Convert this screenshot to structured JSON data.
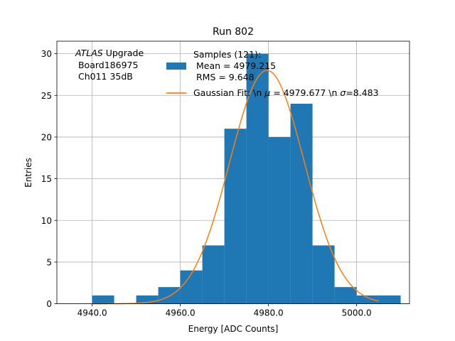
{
  "chart_data": {
    "type": "bar",
    "title": "Run 802",
    "xlabel": "Energy [ADC Counts]",
    "ylabel": "Entries",
    "xlim": [
      4932,
      5012
    ],
    "ylim": [
      0,
      31.5
    ],
    "xticks": [
      {
        "value": 4940,
        "label": "4940.0"
      },
      {
        "value": 4960,
        "label": "4960.0"
      },
      {
        "value": 4980,
        "label": "4980.0"
      },
      {
        "value": 5000,
        "label": "5000.0"
      }
    ],
    "yticks": [
      {
        "value": 0,
        "label": "0"
      },
      {
        "value": 5,
        "label": "5"
      },
      {
        "value": 10,
        "label": "10"
      },
      {
        "value": 15,
        "label": "15"
      },
      {
        "value": 20,
        "label": "20"
      },
      {
        "value": 25,
        "label": "25"
      },
      {
        "value": 30,
        "label": "30"
      }
    ],
    "grid": true,
    "histogram": {
      "name": "Samples (121):",
      "color": "#1f77b4",
      "bin_edges": [
        4940,
        4945,
        4950,
        4955,
        4960,
        4965,
        4970,
        4975,
        4980,
        4985,
        4990,
        4995,
        5000,
        5005,
        5010
      ],
      "counts": [
        1,
        0,
        1,
        2,
        4,
        7,
        21,
        30,
        20,
        24,
        7,
        2,
        1,
        1
      ]
    },
    "fit": {
      "name": "Gaussian Fit: \\n $\\mu$ = 4979.677 \\n $\\sigma$=8.483",
      "color": "#ff7f0e",
      "mu": 4979.677,
      "sigma": 8.483,
      "amplitude": 28.0,
      "x_range": [
        4940,
        5005
      ]
    },
    "legend": {
      "placement": "top-right",
      "hist_lines": [
        "Samples (121):",
        " Mean = 4979.215",
        " RMS = 9.648"
      ],
      "fit_label_parts": [
        "Gaussian Fit: \\n ",
        "μ",
        " = 4979.677 \\n ",
        "σ",
        "=8.483"
      ]
    },
    "annotation": {
      "line1_italic": "ATLAS",
      "line1_rest": " Upgrade",
      "line2": " Board186975",
      "line3": " Ch011 35dB"
    }
  }
}
